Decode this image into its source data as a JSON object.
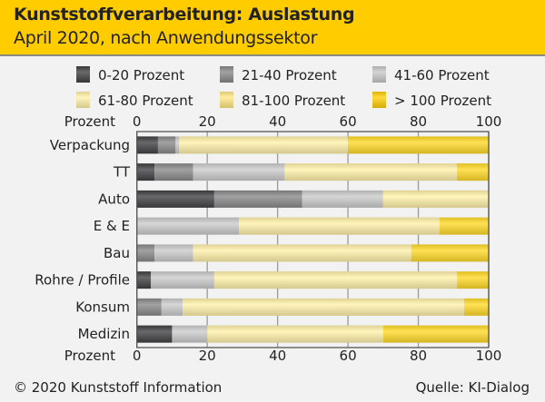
{
  "header": {
    "title": "Kunststoffverarbeitung: Auslastung",
    "subtitle": "April 2020, nach Anwendungssektor"
  },
  "footer": {
    "copyright": "© 2020 Kunststoff Information",
    "source": "Quelle: KI-Dialog"
  },
  "chart_data": {
    "type": "bar",
    "orientation": "horizontal",
    "stacked": true,
    "title": "Kunststoffverarbeitung: Auslastung",
    "subtitle": "April 2020, nach Anwendungssektor",
    "xlabel": "Prozent",
    "xlim": [
      0,
      100
    ],
    "xticks": [
      0,
      20,
      40,
      60,
      80,
      100
    ],
    "grid": true,
    "legend_position": "top",
    "categories": [
      "Verpackung",
      "TT",
      "Auto",
      "E & E",
      "Bau",
      "Rohre / Profile",
      "Konsum",
      "Medizin"
    ],
    "series": [
      {
        "name": "0-20 Prozent",
        "color": "#3a3a3c",
        "values": [
          6,
          5,
          22,
          0,
          0,
          4,
          0,
          10
        ]
      },
      {
        "name": "21-40 Prozent",
        "color": "#858585",
        "values": [
          5,
          11,
          25,
          0,
          5,
          0,
          7,
          0
        ]
      },
      {
        "name": "41-60 Prozent",
        "color": "#c9c9c9",
        "values": [
          1,
          26,
          23,
          29,
          11,
          18,
          6,
          10
        ]
      },
      {
        "name": "61-80 Prozent",
        "color": "#fff0a6",
        "values": [
          48,
          49,
          30,
          57,
          62,
          69,
          80,
          50
        ]
      },
      {
        "name": "81-100 Prozent",
        "color": "#ffd820",
        "values": [
          40,
          9,
          0,
          14,
          22,
          9,
          7,
          30
        ]
      },
      {
        "name": "> 100 Prozent",
        "color": "#ffcc00",
        "values": [
          0,
          0,
          0,
          0,
          0,
          0,
          0,
          0
        ]
      }
    ],
    "legend_swatch_colors": [
      "#3a3a3c",
      "#858585",
      "#c6c6c6",
      "#fff0a6",
      "#ffe680",
      "#ffcc00"
    ]
  }
}
